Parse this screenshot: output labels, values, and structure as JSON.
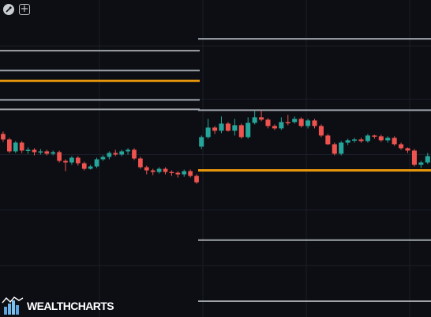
{
  "chart_data": {
    "type": "candlestick",
    "colors": {
      "background": "#0c0e13",
      "grid": "#1b1f29",
      "up_candle": "#26a69a",
      "down_candle": "#ef5350",
      "gray_level": "#9fa3ab",
      "orange_level": "#e6960c"
    },
    "y_range": [
      0,
      400
    ],
    "grid_x": [
      126,
      257,
      388,
      519
    ],
    "grid_y": [
      58,
      125,
      195,
      265,
      335
    ],
    "sessions": [
      {
        "x_range": [
          0,
          253
        ],
        "levels": [
          {
            "value": 64,
            "color": "gray"
          },
          {
            "value": 89,
            "color": "gray"
          },
          {
            "value": 102,
            "color": "orange"
          },
          {
            "value": 126,
            "color": "gray"
          },
          {
            "value": 138,
            "color": "gray"
          }
        ],
        "candles": [
          [
            169,
            176,
            166,
            179
          ],
          [
            176,
            191,
            174,
            193
          ],
          [
            191,
            180,
            178,
            193
          ],
          [
            180,
            190,
            178,
            193
          ],
          [
            190,
            189,
            186,
            194
          ],
          [
            189,
            192,
            187,
            196
          ],
          [
            192,
            191,
            188,
            195
          ],
          [
            191,
            194,
            189,
            196
          ],
          [
            194,
            192,
            190,
            196
          ],
          [
            192,
            203,
            190,
            205
          ],
          [
            203,
            205,
            201,
            216
          ],
          [
            205,
            199,
            197,
            208
          ],
          [
            199,
            206,
            197,
            209
          ],
          [
            206,
            213,
            204,
            215
          ],
          [
            213,
            210,
            208,
            214
          ],
          [
            210,
            201,
            199,
            212
          ],
          [
            201,
            198,
            196,
            203
          ],
          [
            198,
            193,
            191,
            201
          ],
          [
            193,
            195,
            189,
            197
          ],
          [
            195,
            191,
            189,
            197
          ],
          [
            191,
            189,
            187,
            195
          ],
          [
            189,
            200,
            187,
            202
          ],
          [
            200,
            211,
            198,
            213
          ],
          [
            211,
            215,
            209,
            220
          ],
          [
            215,
            217,
            213,
            221
          ],
          [
            217,
            213,
            211,
            219
          ],
          [
            213,
            217,
            211,
            220
          ],
          [
            217,
            218,
            215,
            222
          ],
          [
            218,
            220,
            216,
            224
          ],
          [
            220,
            216,
            214,
            223
          ],
          [
            216,
            222,
            214,
            224
          ],
          [
            222,
            230,
            220,
            232
          ]
        ]
      },
      {
        "x_range": [
          251,
          546
        ],
        "levels": [
          {
            "value": 49,
            "color": "gray"
          },
          {
            "value": 139,
            "color": "gray"
          },
          {
            "value": 215,
            "color": "orange"
          },
          {
            "value": 303,
            "color": "gray"
          },
          {
            "value": 380,
            "color": "gray"
          }
        ],
        "candles": [
          [
            185,
            173,
            171,
            188
          ],
          [
            173,
            161,
            150,
            175
          ],
          [
            161,
            165,
            159,
            169
          ],
          [
            165,
            156,
            147,
            168
          ],
          [
            156,
            165,
            154,
            166
          ],
          [
            165,
            158,
            150,
            171
          ],
          [
            158,
            173,
            156,
            175
          ],
          [
            173,
            155,
            148,
            175
          ],
          [
            155,
            148,
            140,
            157
          ],
          [
            148,
            151,
            140,
            153
          ],
          [
            151,
            159,
            149,
            162
          ],
          [
            159,
            162,
            157,
            164
          ],
          [
            162,
            154,
            148,
            164
          ],
          [
            154,
            154,
            145,
            158
          ],
          [
            154,
            150,
            147,
            156
          ],
          [
            150,
            159,
            148,
            161
          ],
          [
            159,
            152,
            150,
            162
          ],
          [
            152,
            159,
            150,
            162
          ],
          [
            159,
            171,
            157,
            173
          ],
          [
            171,
            182,
            169,
            183
          ],
          [
            182,
            194,
            180,
            196
          ],
          [
            194,
            180,
            178,
            196
          ],
          [
            180,
            177,
            175,
            183
          ],
          [
            177,
            176,
            174,
            180
          ],
          [
            176,
            178,
            174,
            180
          ],
          [
            178,
            171,
            169,
            180
          ],
          [
            171,
            172,
            170,
            175
          ],
          [
            172,
            177,
            170,
            179
          ],
          [
            177,
            174,
            172,
            180
          ],
          [
            174,
            182,
            172,
            184
          ],
          [
            182,
            187,
            180,
            189
          ],
          [
            187,
            190,
            186,
            193
          ],
          [
            190,
            208,
            188,
            210
          ],
          [
            208,
            205,
            203,
            212
          ],
          [
            205,
            197,
            193,
            207
          ]
        ]
      }
    ]
  },
  "brand": {
    "name": "WEALTHCHARTS"
  }
}
